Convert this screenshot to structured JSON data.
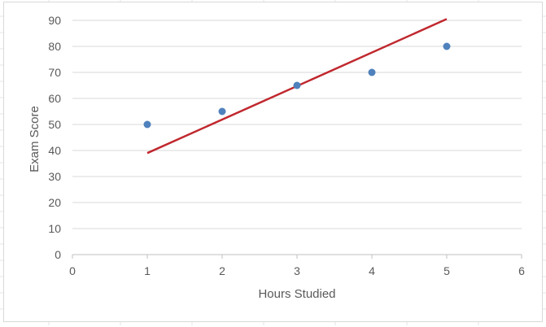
{
  "chart_data": {
    "type": "scatter",
    "title": "",
    "xlabel": "Hours Studied",
    "ylabel": "Exam Score",
    "xlim": [
      0,
      6
    ],
    "ylim": [
      0,
      90
    ],
    "x_ticks": [
      "0",
      "1",
      "2",
      "3",
      "4",
      "5",
      "6"
    ],
    "y_ticks": [
      "0",
      "10",
      "20",
      "30",
      "40",
      "50",
      "60",
      "70",
      "80",
      "90"
    ],
    "grid": "horizontal",
    "legend": "none",
    "series": [
      {
        "x": [
          1,
          2,
          3,
          4,
          5
        ],
        "y": [
          50,
          55,
          65,
          70,
          80
        ],
        "color": "#4f81bd"
      }
    ],
    "trendline": {
      "type": "linear",
      "x": [
        1,
        5
      ],
      "y": [
        39,
        90.5
      ],
      "color": "#c0282e"
    }
  },
  "colors": {
    "gridline": "#d9d9d9",
    "axis": "#bfbfbf",
    "text": "#595959"
  }
}
